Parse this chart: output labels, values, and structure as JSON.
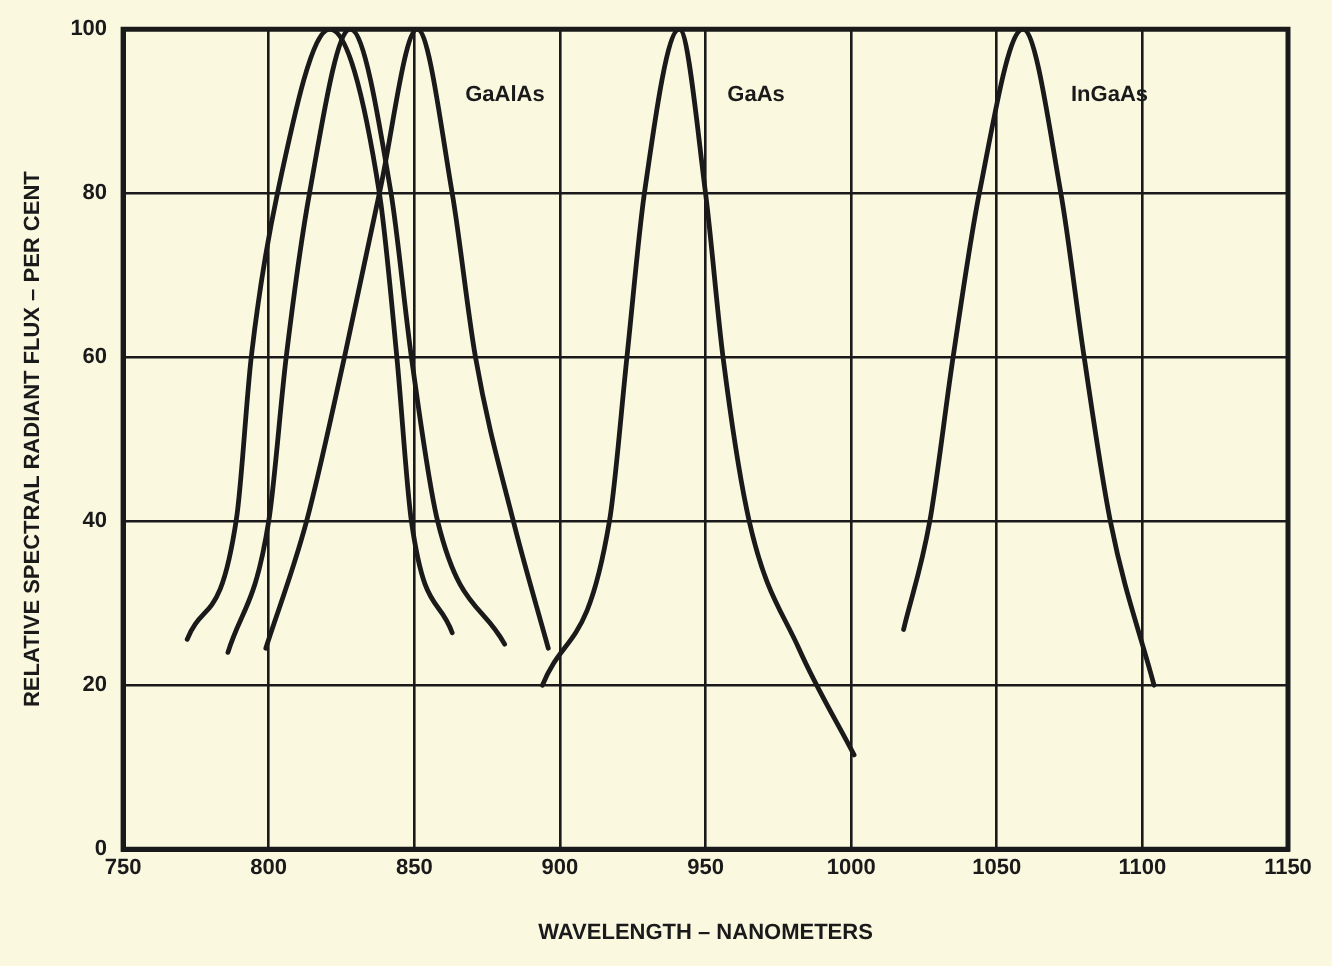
{
  "chart_data": {
    "type": "line",
    "xlabel": "WAVELENGTH – NANOMETERS",
    "ylabel": "RELATIVE SPECTRAL RADIANT FLUX – PER CENT",
    "xlim": [
      750,
      1150
    ],
    "xticks": [
      750,
      800,
      850,
      900,
      950,
      1000,
      1050,
      1100,
      1150
    ],
    "ylim": [
      0,
      100
    ],
    "yticks": [
      0,
      20,
      40,
      60,
      80,
      100
    ],
    "grid": true,
    "legend": false,
    "marker": "none",
    "line_style": "solid",
    "series": [
      {
        "color": "#1a1a1a",
        "x": [
          772,
          789,
          794,
          803,
          821,
          838,
          844,
          849,
          863
        ],
        "values": [
          25.6,
          40.5,
          60,
          80,
          100,
          80,
          60,
          40,
          26.4
        ]
      },
      {
        "color": "#1a1a1a",
        "x": [
          786,
          800,
          806,
          814,
          828,
          842,
          849,
          858,
          881
        ],
        "values": [
          24,
          40,
          60,
          80,
          100,
          80,
          60,
          40,
          25
        ]
      },
      {
        "name": "GaAlAs",
        "color": "#1a1a1a",
        "x": [
          799,
          813,
          826,
          838,
          851,
          863,
          871,
          884,
          896
        ],
        "values": [
          24.5,
          40,
          60,
          80,
          100,
          80,
          60,
          40,
          24.5
        ]
      },
      {
        "name": "GaAs",
        "color": "#1a1a1a",
        "x": [
          894,
          917,
          923,
          929,
          941,
          950,
          956,
          965,
          982,
          1001
        ],
        "values": [
          20,
          40,
          60,
          80,
          100,
          80,
          60,
          40,
          24.5,
          11.5
        ]
      },
      {
        "name": "InGaAs",
        "color": "#1a1a1a",
        "x": [
          1018,
          1027,
          1035,
          1044,
          1059,
          1072,
          1080,
          1089,
          1104
        ],
        "values": [
          26.8,
          40,
          60,
          80,
          100,
          80,
          60,
          40,
          20
        ]
      }
    ]
  }
}
